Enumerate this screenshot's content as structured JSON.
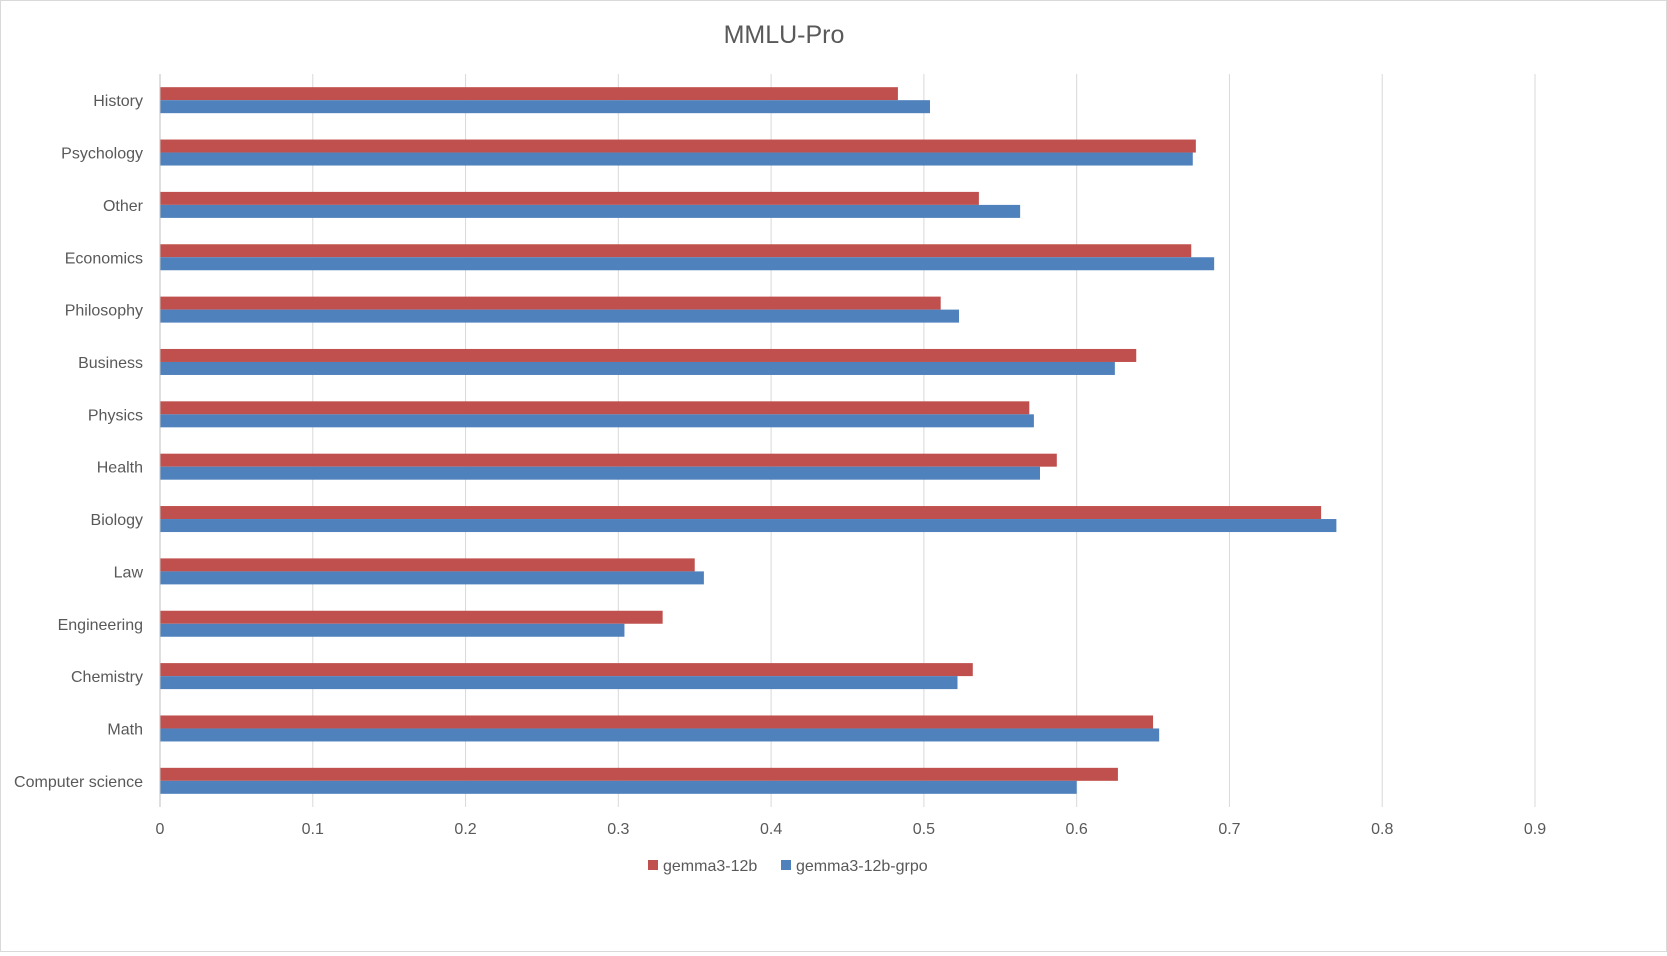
{
  "chart_data": {
    "type": "bar",
    "orientation": "horizontal",
    "title": "MMLU-Pro",
    "xlabel": "",
    "ylabel": "",
    "xlim": [
      0,
      0.9
    ],
    "x_ticks": [
      "0",
      "0.1",
      "0.2",
      "0.3",
      "0.4",
      "0.5",
      "0.6",
      "0.7",
      "0.8",
      "0.9"
    ],
    "grid": true,
    "legend_position": "bottom",
    "categories": [
      "History",
      "Psychology",
      "Other",
      "Economics",
      "Philosophy",
      "Business",
      "Physics",
      "Health",
      "Biology",
      "Law",
      "Engineering",
      "Chemistry",
      "Math",
      "Computer science"
    ],
    "series": [
      {
        "name": "gemma3-12b",
        "color": "#c0504d",
        "values": [
          0.483,
          0.678,
          0.536,
          0.675,
          0.511,
          0.639,
          0.569,
          0.587,
          0.76,
          0.35,
          0.329,
          0.532,
          0.65,
          0.627
        ]
      },
      {
        "name": "gemma3-12b-grpo",
        "color": "#4f81bd",
        "values": [
          0.504,
          0.676,
          0.563,
          0.69,
          0.523,
          0.625,
          0.572,
          0.576,
          0.77,
          0.356,
          0.304,
          0.522,
          0.654,
          0.6
        ]
      }
    ]
  }
}
